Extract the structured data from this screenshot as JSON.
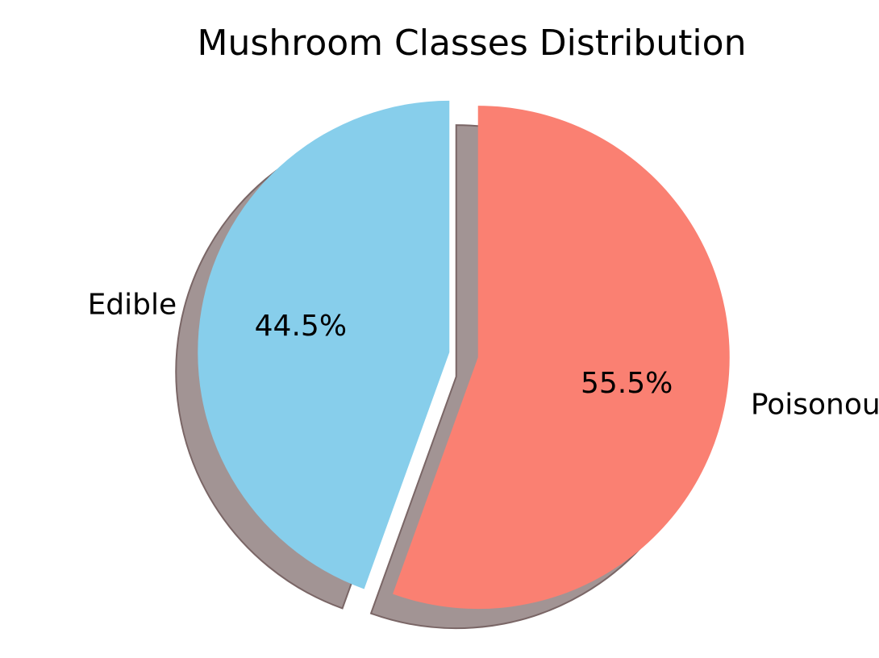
{
  "chart_data": {
    "type": "pie",
    "title": "Mushroom Classes Distribution",
    "slices": [
      {
        "label": "Edible",
        "value": 44.5,
        "percent_label": "44.5%",
        "color": "#87CEEB"
      },
      {
        "label": "Poisonous",
        "value": 55.5,
        "percent_label": "55.5%",
        "color": "#FA8072"
      }
    ],
    "start_angle_degrees": 90,
    "direction": "counterclockwise",
    "exploded": true,
    "shadow": true,
    "shadow_color": "#7a6666"
  }
}
